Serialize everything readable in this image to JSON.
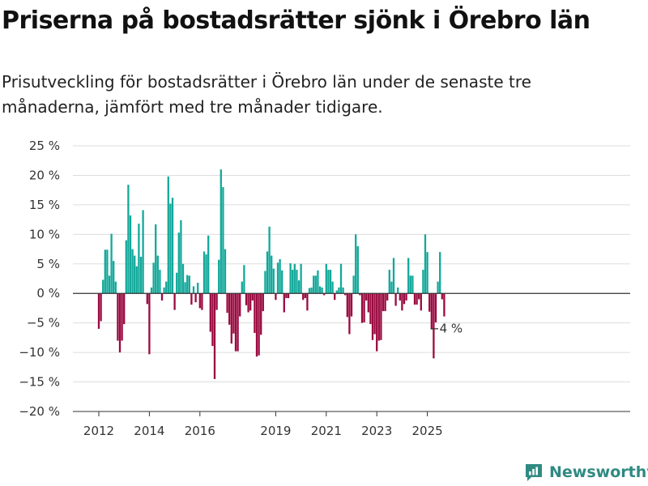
{
  "title": "Priserna på bostadsrätter sjönk i Örebro län",
  "subtitle": "Prisutveckling för bostadsrätter i Örebro län under de senaste tre månaderna, jämfört med tre månader tidigare.",
  "brand": "Newsworthy",
  "colors": {
    "positive": "#13a89a",
    "negative": "#9a0a40",
    "grid": "#dddddd",
    "axis": "#333333"
  },
  "chart_data": {
    "type": "bar",
    "unit": "%",
    "ylim": [
      -20,
      25
    ],
    "yticks": [
      25,
      20,
      15,
      10,
      5,
      0,
      -5,
      -10,
      -15,
      -20
    ],
    "ytick_labels": [
      "25 %",
      "20 %",
      "15 %",
      "10 %",
      "5 %",
      "0 %",
      "−5 %",
      "−10 %",
      "−15 %",
      "−20 %"
    ],
    "xticks": [
      {
        "label": "2012",
        "year": 2012
      },
      {
        "label": "2014",
        "year": 2014
      },
      {
        "label": "2016",
        "year": 2016
      },
      {
        "label": "2019",
        "year": 2019
      },
      {
        "label": "2021",
        "year": 2021
      },
      {
        "label": "2023",
        "year": 2023
      },
      {
        "label": "2025",
        "year": 2025
      }
    ],
    "start": "2012-01",
    "values": [
      -6,
      -4.7,
      2.3,
      7.4,
      7.4,
      3,
      10.1,
      5.5,
      2,
      -8,
      -10,
      -8,
      -5.2,
      9,
      18.4,
      13.2,
      7.5,
      6.4,
      4.6,
      11.8,
      6.2,
      14.1,
      0,
      -1.8,
      -10.3,
      1,
      5.2,
      11.7,
      6.4,
      4,
      -1.2,
      1,
      2,
      19.8,
      15.2,
      16.2,
      -2.8,
      3.5,
      10.3,
      12.4,
      5,
      1.9,
      3.1,
      3,
      -1.9,
      1.2,
      -1.5,
      1.8,
      -2.5,
      -2.8,
      7.1,
      6.6,
      9.8,
      -6.5,
      -8.9,
      -14.5,
      -2.8,
      5.7,
      21,
      18,
      7.5,
      -3.3,
      -5.3,
      -8.5,
      -6.8,
      -9.8,
      -9.8,
      -3.9,
      2,
      4.8,
      -2,
      -3.2,
      -2.9,
      -1.2,
      -6.7,
      -10.7,
      -10.5,
      -7,
      -3,
      3.8,
      7.1,
      11.3,
      6.4,
      4.2,
      -1.1,
      5.2,
      5.8,
      3.9,
      -3.2,
      -0.8,
      -0.8,
      5.1,
      4,
      5,
      4,
      2.2,
      5,
      -1.1,
      -0.8,
      -2.9,
      0.9,
      1,
      3,
      3,
      3.9,
      1.2,
      1,
      -0.3,
      5,
      4,
      4,
      2,
      -1.1,
      0.5,
      1,
      5,
      1,
      -0.3,
      -4,
      -6.9,
      -3.9,
      3,
      10,
      8,
      -0.3,
      -5,
      -4.9,
      -1.2,
      -3.2,
      -5.2,
      -7.9,
      -6.9,
      -9.8,
      -8,
      -7.9,
      -3,
      -3,
      -1.2,
      4,
      2,
      6,
      -2.1,
      1,
      -1.2,
      -2.9,
      -1.8,
      -1.2,
      6,
      3,
      3,
      -1.9,
      -1.9,
      -1,
      -2.9,
      4,
      10,
      7,
      -3.1,
      -6.1,
      -11,
      -4.9,
      2,
      7,
      -1,
      -3.9
    ],
    "annotation": {
      "index": 165,
      "value": -4,
      "text": "−4 %"
    }
  }
}
